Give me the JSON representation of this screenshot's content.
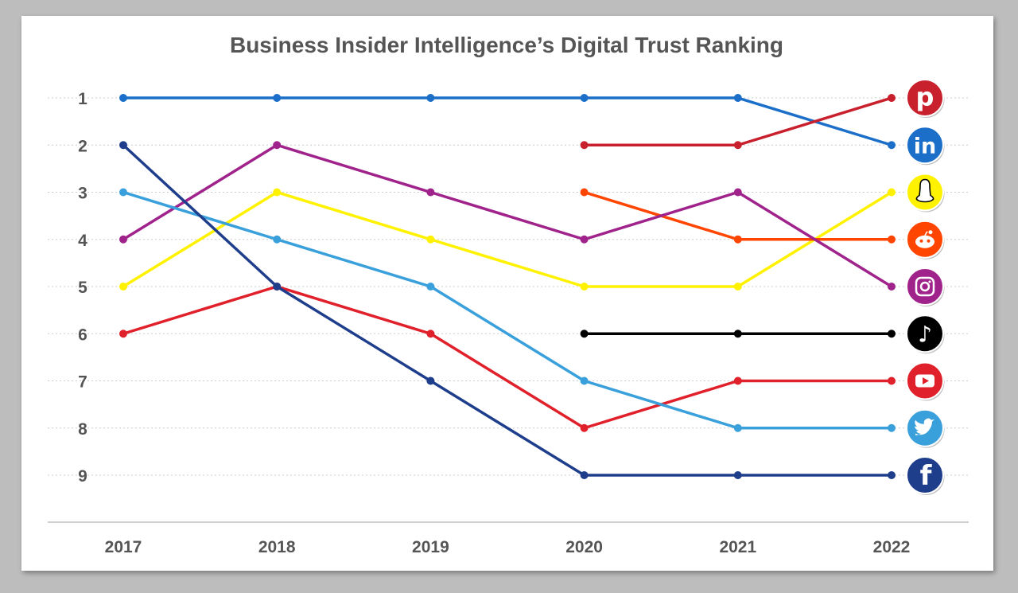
{
  "chart_data": {
    "type": "line",
    "title": "Business Insider Intelligence’s Digital Trust Ranking",
    "xlabel": "",
    "ylabel": "",
    "categories": [
      "2017",
      "2018",
      "2019",
      "2020",
      "2021",
      "2022"
    ],
    "ylim": [
      1,
      9
    ],
    "y_inverted": true,
    "y_ticks": [
      "1",
      "2",
      "3",
      "4",
      "5",
      "6",
      "7",
      "8",
      "9"
    ],
    "grid": true,
    "legend": "icons at right end of each line",
    "series": [
      {
        "name": "LinkedIn",
        "icon": "linkedin-icon",
        "glyph": "in",
        "color": "#1b6fc9",
        "values": [
          1,
          1,
          1,
          1,
          1,
          2
        ]
      },
      {
        "name": "Pinterest",
        "icon": "pinterest-icon",
        "glyph": "p",
        "color": "#c8202c",
        "values": [
          null,
          null,
          null,
          2,
          2,
          1
        ]
      },
      {
        "name": "Snapchat",
        "icon": "snapchat-icon",
        "glyph": "",
        "color": "#fff200",
        "values": [
          5,
          3,
          4,
          5,
          5,
          3
        ]
      },
      {
        "name": "Reddit",
        "icon": "reddit-icon",
        "glyph": "",
        "color": "#ff4500",
        "values": [
          null,
          null,
          null,
          3,
          4,
          4
        ]
      },
      {
        "name": "Instagram",
        "icon": "instagram-icon",
        "glyph": "",
        "color": "#a0238c",
        "values": [
          4,
          2,
          3,
          4,
          3,
          5
        ]
      },
      {
        "name": "TikTok",
        "icon": "tiktok-icon",
        "glyph": "♪",
        "color": "#000000",
        "values": [
          null,
          null,
          null,
          6,
          6,
          6
        ]
      },
      {
        "name": "YouTube",
        "icon": "youtube-icon",
        "glyph": "",
        "color": "#e0202a",
        "values": [
          6,
          5,
          6,
          8,
          7,
          7
        ]
      },
      {
        "name": "Twitter",
        "icon": "twitter-icon",
        "glyph": "",
        "color": "#3aa0dc",
        "values": [
          3,
          4,
          5,
          7,
          8,
          8
        ]
      },
      {
        "name": "Facebook",
        "icon": "facebook-icon",
        "glyph": "f",
        "color": "#1e3e8c",
        "values": [
          2,
          5,
          7,
          9,
          9,
          9
        ]
      }
    ]
  }
}
